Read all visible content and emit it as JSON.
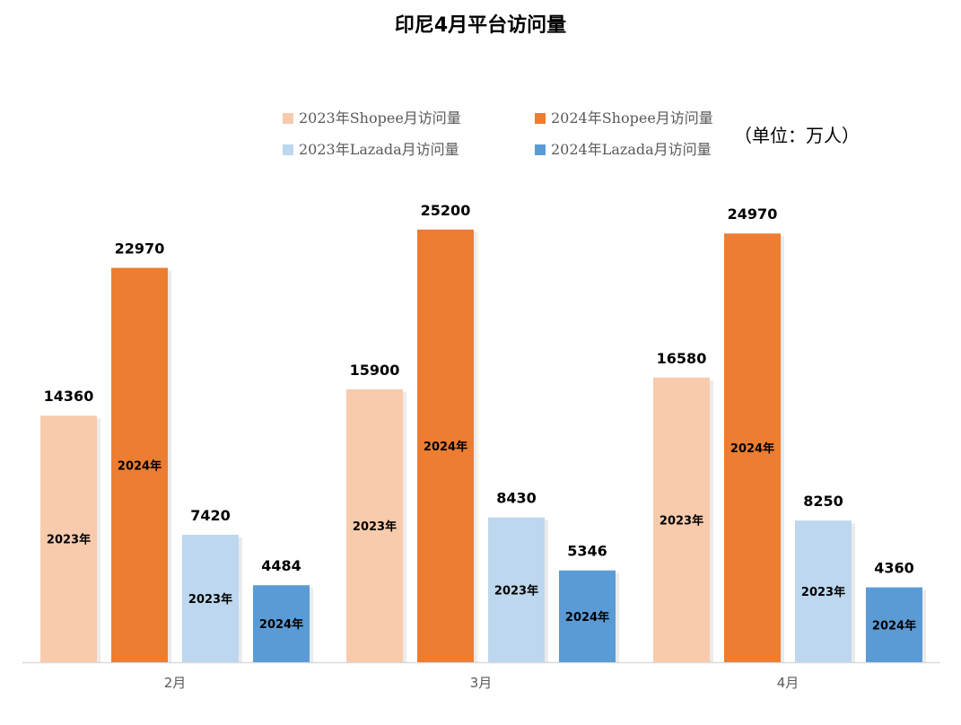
{
  "title": "印尼4月平台访问量",
  "unit_label": "（单位：万人）",
  "chart_data": {
    "type": "bar",
    "title": "印尼4月平台访问量",
    "categories": [
      "2月",
      "3月",
      "4月"
    ],
    "series": [
      {
        "name": "2023年Shopee月访问量",
        "bar_label": "2023年",
        "color": "#F8CBAD",
        "values": [
          14360,
          15900,
          16580
        ]
      },
      {
        "name": "2024年Shopee月访问量",
        "bar_label": "2024年",
        "color": "#ED7D31",
        "values": [
          22970,
          25200,
          24970
        ]
      },
      {
        "name": "2023年Lazada月访问量",
        "bar_label": "2023年",
        "color": "#BDD7EE",
        "values": [
          7420,
          8430,
          8250
        ]
      },
      {
        "name": "2024年Lazada月访问量",
        "bar_label": "2024年",
        "color": "#5B9BD5",
        "values": [
          4484,
          5346,
          4360
        ]
      }
    ],
    "ylim": [
      0,
      30000
    ],
    "grid": false,
    "legend_position": "top"
  }
}
